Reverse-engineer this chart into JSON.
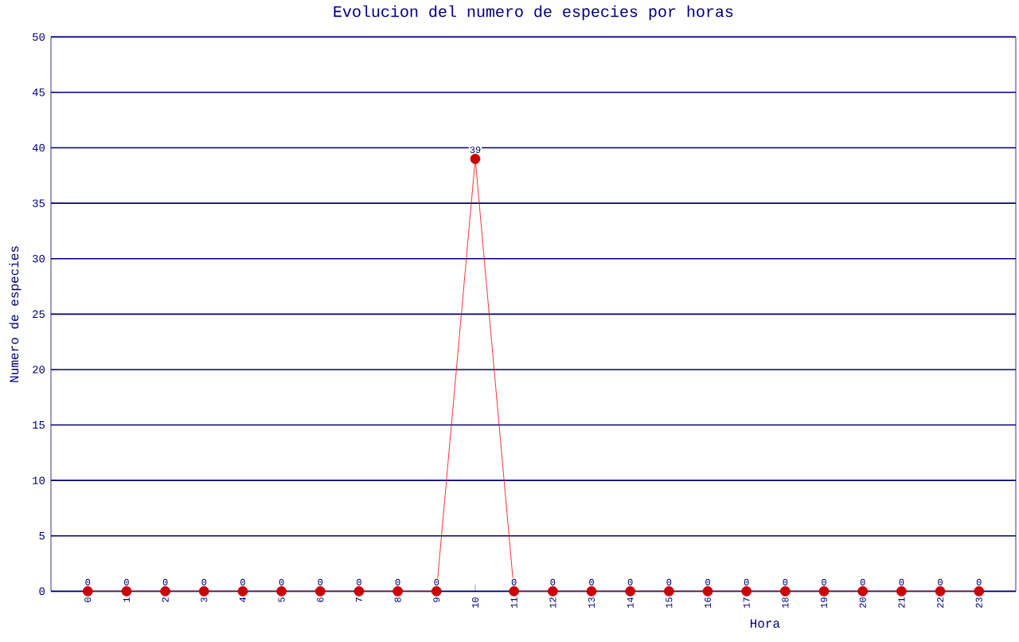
{
  "chart_data": {
    "type": "line",
    "title": "Evolucion del numero de especies por horas",
    "xlabel": "Hora",
    "ylabel": "Numero de especies",
    "categories": [
      "0",
      "1",
      "2",
      "3",
      "4",
      "5",
      "6",
      "7",
      "8",
      "9",
      "10",
      "11",
      "12",
      "13",
      "14",
      "15",
      "16",
      "17",
      "18",
      "19",
      "20",
      "21",
      "22",
      "23"
    ],
    "series": [
      {
        "color": "#ff0000",
        "values": [
          0,
          0,
          0,
          0,
          0,
          0,
          0,
          0,
          0,
          0,
          39,
          0,
          0,
          0,
          0,
          0,
          0,
          0,
          0,
          0,
          0,
          0,
          0,
          0
        ]
      }
    ],
    "ylim": [
      0,
      50
    ],
    "yticks": [
      0,
      5,
      10,
      15,
      20,
      25,
      30,
      35,
      40,
      45,
      50
    ],
    "grid": "y",
    "marker": "circle",
    "data_labels": true
  }
}
